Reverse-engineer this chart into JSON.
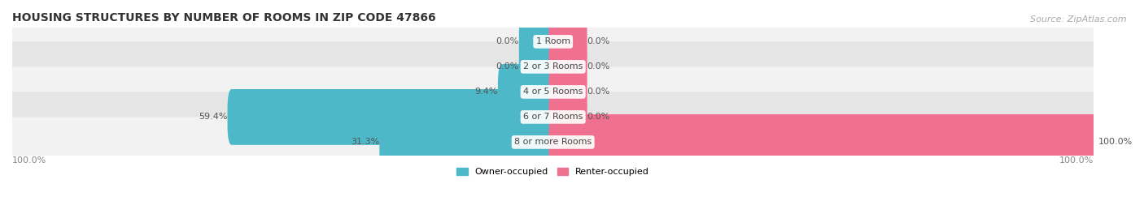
{
  "title": "HOUSING STRUCTURES BY NUMBER OF ROOMS IN ZIP CODE 47866",
  "source": "Source: ZipAtlas.com",
  "categories": [
    "1 Room",
    "2 or 3 Rooms",
    "4 or 5 Rooms",
    "6 or 7 Rooms",
    "8 or more Rooms"
  ],
  "owner_values": [
    0.0,
    0.0,
    9.4,
    59.4,
    31.3
  ],
  "renter_values": [
    0.0,
    0.0,
    0.0,
    0.0,
    100.0
  ],
  "owner_color": "#4db8c8",
  "renter_color": "#f07090",
  "row_bg_colors": [
    "#f2f2f2",
    "#e6e6e6"
  ],
  "title_fontsize": 10,
  "label_fontsize": 8,
  "tick_fontsize": 8,
  "source_fontsize": 8,
  "figsize": [
    14.06,
    2.69
  ],
  "dpi": 100,
  "xlim": [
    -100,
    100
  ],
  "min_bar_width": 5.5,
  "bottom_labels": [
    "100.0%",
    "100.0%"
  ],
  "legend_owner": "Owner-occupied",
  "legend_renter": "Renter-occupied"
}
